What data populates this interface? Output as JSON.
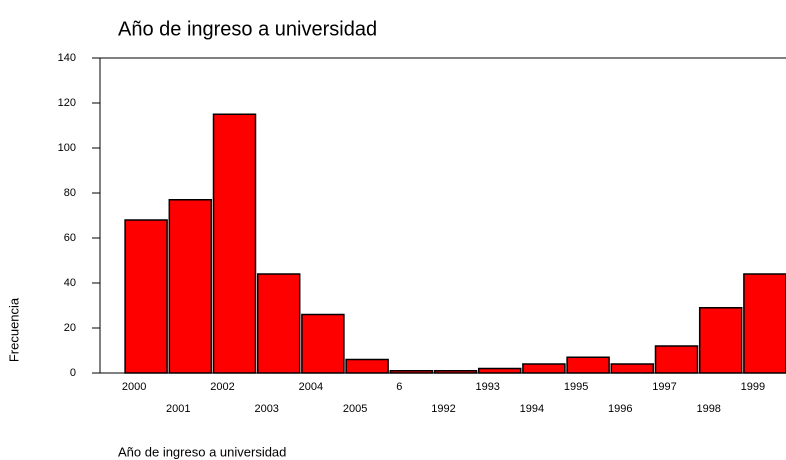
{
  "chart_data": {
    "type": "bar",
    "title": "Año de ingreso a universidad",
    "x_label": "Año de ingreso a universidad",
    "y_label": "Frecuencia",
    "categories": [
      "2000",
      "2001",
      "2002",
      "2003",
      "2004",
      "2005",
      "6",
      "1992",
      "1993",
      "1994",
      "1995",
      "1996",
      "1997",
      "1998",
      "1999"
    ],
    "values": [
      68,
      77,
      115,
      44,
      26,
      6,
      1,
      1,
      2,
      4,
      7,
      4,
      12,
      29,
      44
    ],
    "color": "#ff0000",
    "ylim": [
      0,
      140
    ],
    "yticks": [
      0,
      20,
      40,
      60,
      80,
      100,
      120,
      140
    ]
  }
}
